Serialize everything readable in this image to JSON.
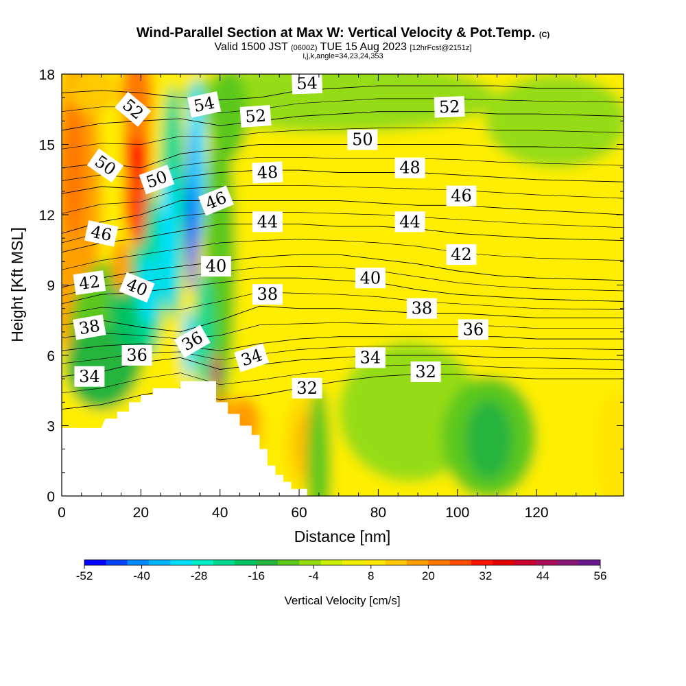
{
  "title": {
    "main": "Wind-Parallel Section at Max W: Vertical Velocity & Pot.Temp.",
    "main_tag": "(C)",
    "valid_prefix": "Valid 1500 JST",
    "valid_zulu": "(0600Z)",
    "valid_date": "TUE 15 Aug 2023",
    "valid_fcst": "[12hrFcst@2151z]",
    "indices": "i,j,k,angle=34,23,24,353"
  },
  "chart_data": {
    "type": "heatmap",
    "xlabel": "Distance [nm]",
    "ylabel": "Height [Kft MSL]",
    "xlim": [
      0,
      142
    ],
    "ylim": [
      0,
      18
    ],
    "x_ticks": [
      0,
      20,
      40,
      60,
      80,
      100,
      120
    ],
    "y_ticks": [
      0,
      3,
      6,
      9,
      12,
      15,
      18
    ],
    "colorbar": {
      "label": "Vertical Velocity [cm/s]",
      "ticks": [
        -52,
        -40,
        -28,
        -16,
        -4,
        8,
        20,
        32,
        44,
        56
      ],
      "colors": [
        "#0000ff",
        "#0044ff",
        "#0088ff",
        "#00b4ff",
        "#00e0ff",
        "#00f0c8",
        "#00d890",
        "#00c060",
        "#28b43c",
        "#5cc81e",
        "#96dc14",
        "#c8f000",
        "#f0f000",
        "#ffe800",
        "#ffc800",
        "#ffa000",
        "#ff7800",
        "#ff4e00",
        "#ff1400",
        "#e60000",
        "#c80030",
        "#a8105a",
        "#8a1878",
        "#6a1890"
      ]
    },
    "theta_contours": [
      {
        "theta": 32,
        "points": [
          [
            0,
            3.7
          ],
          [
            10,
            3.9
          ],
          [
            20,
            4.3
          ],
          [
            30,
            4.6
          ],
          [
            40,
            4.1
          ],
          [
            50,
            4.3
          ],
          [
            60,
            4.6
          ],
          [
            70,
            4.9
          ],
          [
            80,
            5.1
          ],
          [
            90,
            5.2
          ],
          [
            100,
            5.2
          ],
          [
            110,
            5.1
          ],
          [
            120,
            5.0
          ],
          [
            142,
            5.0
          ]
        ]
      },
      {
        "theta": 34,
        "points": [
          [
            0,
            5.1
          ],
          [
            10,
            5.3
          ],
          [
            20,
            5.7
          ],
          [
            30,
            5.9
          ],
          [
            40,
            5.4
          ],
          [
            50,
            5.6
          ],
          [
            60,
            5.8
          ],
          [
            70,
            5.9
          ],
          [
            80,
            6.0
          ],
          [
            90,
            6.0
          ],
          [
            100,
            6.0
          ],
          [
            110,
            5.9
          ],
          [
            120,
            5.9
          ],
          [
            142,
            5.8
          ]
        ]
      },
      {
        "theta": 36,
        "points": [
          [
            0,
            6.2
          ],
          [
            10,
            6.4
          ],
          [
            20,
            6.5
          ],
          [
            30,
            6.4
          ],
          [
            40,
            6.2
          ],
          [
            50,
            6.5
          ],
          [
            60,
            6.7
          ],
          [
            70,
            6.8
          ],
          [
            80,
            6.8
          ],
          [
            90,
            6.8
          ],
          [
            100,
            6.8
          ],
          [
            110,
            6.8
          ],
          [
            120,
            6.7
          ],
          [
            142,
            6.7
          ]
        ]
      },
      {
        "theta": 38,
        "points": [
          [
            0,
            7.3
          ],
          [
            10,
            7.5
          ],
          [
            20,
            7.2
          ],
          [
            30,
            7.0
          ],
          [
            40,
            7.5
          ],
          [
            50,
            8.1
          ],
          [
            60,
            8.0
          ],
          [
            70,
            8.0
          ],
          [
            80,
            7.9
          ],
          [
            90,
            7.8
          ],
          [
            100,
            7.8
          ],
          [
            110,
            7.7
          ],
          [
            120,
            7.6
          ],
          [
            142,
            7.6
          ]
        ]
      },
      {
        "theta": 40,
        "points": [
          [
            0,
            8.2
          ],
          [
            10,
            8.6
          ],
          [
            20,
            8.7
          ],
          [
            30,
            8.9
          ],
          [
            40,
            9.1
          ],
          [
            50,
            9.3
          ],
          [
            60,
            9.3
          ],
          [
            70,
            9.2
          ],
          [
            80,
            9.1
          ],
          [
            90,
            8.8
          ],
          [
            100,
            8.6
          ],
          [
            110,
            8.5
          ],
          [
            120,
            8.4
          ],
          [
            142,
            8.3
          ]
        ]
      },
      {
        "theta": 42,
        "points": [
          [
            0,
            8.9
          ],
          [
            10,
            9.3
          ],
          [
            20,
            9.6
          ],
          [
            30,
            9.8
          ],
          [
            40,
            10.0
          ],
          [
            50,
            10.2
          ],
          [
            60,
            10.3
          ],
          [
            70,
            10.3
          ],
          [
            80,
            10.1
          ],
          [
            90,
            9.9
          ],
          [
            100,
            9.6
          ],
          [
            110,
            9.4
          ],
          [
            120,
            9.3
          ],
          [
            142,
            9.2
          ]
        ]
      },
      {
        "theta": 44,
        "points": [
          [
            0,
            10.4
          ],
          [
            10,
            10.8
          ],
          [
            20,
            11.0
          ],
          [
            30,
            11.3
          ],
          [
            40,
            11.6
          ],
          [
            50,
            11.6
          ],
          [
            60,
            11.6
          ],
          [
            70,
            11.5
          ],
          [
            80,
            11.5
          ],
          [
            90,
            11.4
          ],
          [
            100,
            11.2
          ],
          [
            110,
            11.1
          ],
          [
            120,
            11.0
          ],
          [
            142,
            10.9
          ]
        ]
      },
      {
        "theta": 46,
        "points": [
          [
            0,
            11.2
          ],
          [
            10,
            11.7
          ],
          [
            20,
            12.0
          ],
          [
            30,
            12.6
          ],
          [
            40,
            12.6
          ],
          [
            50,
            12.6
          ],
          [
            60,
            12.6
          ],
          [
            70,
            12.6
          ],
          [
            80,
            12.5
          ],
          [
            90,
            12.4
          ],
          [
            100,
            12.4
          ],
          [
            110,
            12.3
          ],
          [
            120,
            12.2
          ],
          [
            142,
            12.0
          ]
        ]
      },
      {
        "theta": 48,
        "points": [
          [
            0,
            12.9
          ],
          [
            10,
            13.2
          ],
          [
            20,
            13.1
          ],
          [
            30,
            13.6
          ],
          [
            40,
            13.8
          ],
          [
            50,
            13.9
          ],
          [
            60,
            13.9
          ],
          [
            70,
            13.8
          ],
          [
            80,
            13.8
          ],
          [
            90,
            13.8
          ],
          [
            100,
            13.7
          ],
          [
            110,
            13.6
          ],
          [
            120,
            13.5
          ],
          [
            142,
            13.4
          ]
        ]
      },
      {
        "theta": 50,
        "points": [
          [
            0,
            14.0
          ],
          [
            10,
            14.2
          ],
          [
            20,
            14.0
          ],
          [
            30,
            14.6
          ],
          [
            40,
            14.8
          ],
          [
            50,
            15.0
          ],
          [
            60,
            15.0
          ],
          [
            70,
            15.0
          ],
          [
            80,
            15.0
          ],
          [
            90,
            15.0
          ],
          [
            100,
            15.0
          ],
          [
            110,
            14.9
          ],
          [
            120,
            14.9
          ],
          [
            142,
            14.8
          ]
        ]
      },
      {
        "theta": 52,
        "points": [
          [
            0,
            15.6
          ],
          [
            10,
            15.9
          ],
          [
            20,
            16.0
          ],
          [
            30,
            16.1
          ],
          [
            40,
            15.8
          ],
          [
            50,
            16.0
          ],
          [
            60,
            16.2
          ],
          [
            70,
            16.3
          ],
          [
            80,
            16.4
          ],
          [
            90,
            16.4
          ],
          [
            100,
            16.4
          ],
          [
            110,
            16.3
          ],
          [
            120,
            16.3
          ],
          [
            142,
            16.2
          ]
        ]
      },
      {
        "theta": 54,
        "points": [
          [
            0,
            17.2
          ],
          [
            10,
            17.3
          ],
          [
            20,
            17.2
          ],
          [
            30,
            17.0
          ],
          [
            40,
            16.9
          ],
          [
            50,
            17.0
          ],
          [
            60,
            17.3
          ],
          [
            70,
            17.4
          ],
          [
            80,
            17.5
          ],
          [
            90,
            17.5
          ],
          [
            100,
            17.5
          ],
          [
            110,
            17.5
          ],
          [
            120,
            17.4
          ],
          [
            142,
            17.4
          ]
        ]
      }
    ],
    "contour_labels": [
      {
        "text": "54",
        "x": 62,
        "y": 17.6,
        "angle": -2
      },
      {
        "text": "52",
        "x": 98,
        "y": 16.6,
        "angle": -2
      },
      {
        "text": "52",
        "x": 18,
        "y": 16.5,
        "angle": 40
      },
      {
        "text": "54",
        "x": 36,
        "y": 16.7,
        "angle": -12
      },
      {
        "text": "52",
        "x": 49,
        "y": 16.2,
        "angle": -4
      },
      {
        "text": "50",
        "x": 76,
        "y": 15.2,
        "angle": 0
      },
      {
        "text": "50",
        "x": 11,
        "y": 14.1,
        "angle": 35
      },
      {
        "text": "50",
        "x": 24,
        "y": 13.5,
        "angle": -20
      },
      {
        "text": "48",
        "x": 52,
        "y": 13.8,
        "angle": -3
      },
      {
        "text": "48",
        "x": 88,
        "y": 14.0,
        "angle": 0
      },
      {
        "text": "46",
        "x": 101,
        "y": 12.8,
        "angle": 0
      },
      {
        "text": "46",
        "x": 39,
        "y": 12.6,
        "angle": -22
      },
      {
        "text": "44",
        "x": 52,
        "y": 11.7,
        "angle": 0
      },
      {
        "text": "44",
        "x": 88,
        "y": 11.7,
        "angle": 0
      },
      {
        "text": "46",
        "x": 10,
        "y": 11.2,
        "angle": 12
      },
      {
        "text": "42",
        "x": 101,
        "y": 10.3,
        "angle": 0
      },
      {
        "text": "40",
        "x": 39,
        "y": 9.8,
        "angle": 0
      },
      {
        "text": "40",
        "x": 78,
        "y": 9.3,
        "angle": 0
      },
      {
        "text": "42",
        "x": 7,
        "y": 9.1,
        "angle": -8
      },
      {
        "text": "40",
        "x": 19,
        "y": 8.9,
        "angle": 22
      },
      {
        "text": "38",
        "x": 52,
        "y": 8.6,
        "angle": 0
      },
      {
        "text": "38",
        "x": 91,
        "y": 8.0,
        "angle": 0
      },
      {
        "text": "38",
        "x": 7,
        "y": 7.2,
        "angle": -10
      },
      {
        "text": "36",
        "x": 104,
        "y": 7.1,
        "angle": 0
      },
      {
        "text": "36",
        "x": 33,
        "y": 6.6,
        "angle": -30
      },
      {
        "text": "36",
        "x": 19,
        "y": 6.0,
        "angle": 0
      },
      {
        "text": "34",
        "x": 48,
        "y": 5.9,
        "angle": -18
      },
      {
        "text": "34",
        "x": 78,
        "y": 5.9,
        "angle": 0
      },
      {
        "text": "32",
        "x": 92,
        "y": 5.3,
        "angle": 0
      },
      {
        "text": "34",
        "x": 7,
        "y": 5.1,
        "angle": 0
      },
      {
        "text": "32",
        "x": 62,
        "y": 4.6,
        "angle": 0
      }
    ]
  }
}
